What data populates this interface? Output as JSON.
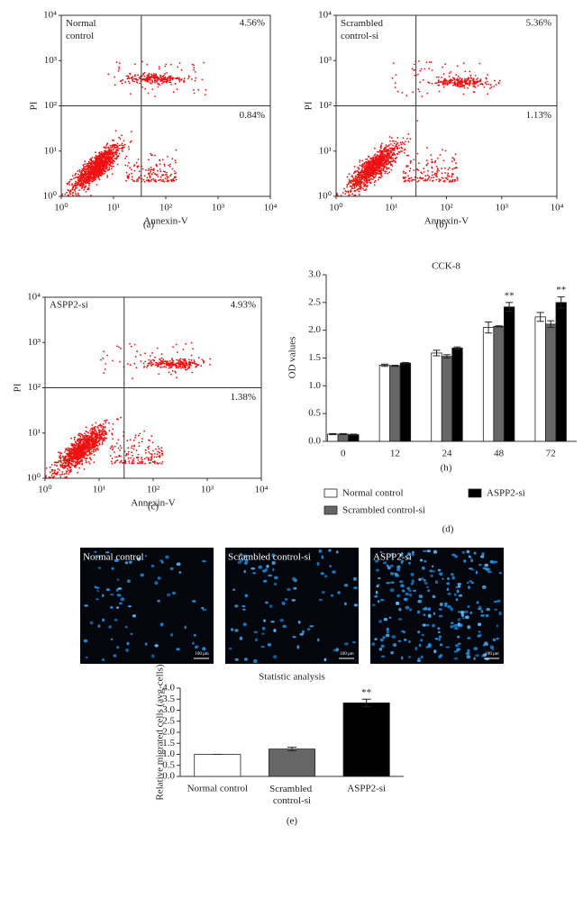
{
  "panel_labels": [
    "(a)",
    "(b)",
    "(c)",
    "(d)",
    "(e)"
  ],
  "chart_data": [
    {
      "type": "scatter",
      "title": "Normal control",
      "xlabel": "Annexin-V",
      "ylabel": "PI",
      "log_x": true,
      "log_y": true,
      "xlim": [
        1,
        10000
      ],
      "ylim": [
        1,
        10000
      ],
      "xticks": [
        {
          "value": 1,
          "label": "10⁰"
        },
        {
          "value": 10,
          "label": "10¹"
        },
        {
          "value": 100,
          "label": "10²"
        },
        {
          "value": 1000,
          "label": "10³"
        },
        {
          "value": 10000,
          "label": "10⁴"
        }
      ],
      "yticks": [
        {
          "value": 1,
          "label": "10⁰"
        },
        {
          "value": 10,
          "label": "10¹"
        },
        {
          "value": 100,
          "label": "10²"
        },
        {
          "value": 1000,
          "label": "10³"
        },
        {
          "value": 10000,
          "label": "10⁴"
        }
      ],
      "gate": {
        "x": 34,
        "y": 100
      },
      "quadrant_values": [
        4.56,
        0.84
      ],
      "quadrant_value_labels": [
        "4.56%",
        "0.84%"
      ],
      "color": "#ee1111"
    },
    {
      "type": "scatter",
      "title": "Scrambled control-si",
      "xlabel": "Annexin-V",
      "ylabel": "PI",
      "log_x": true,
      "log_y": true,
      "xlim": [
        1,
        10000
      ],
      "ylim": [
        1,
        10000
      ],
      "xticks": [
        {
          "value": 1,
          "label": "10⁰"
        },
        {
          "value": 10,
          "label": "10¹"
        },
        {
          "value": 100,
          "label": "10²"
        },
        {
          "value": 1000,
          "label": "10³"
        },
        {
          "value": 10000,
          "label": "10⁴"
        }
      ],
      "yticks": [
        {
          "value": 1,
          "label": "10⁰"
        },
        {
          "value": 10,
          "label": "10¹"
        },
        {
          "value": 100,
          "label": "10²"
        },
        {
          "value": 1000,
          "label": "10³"
        },
        {
          "value": 10000,
          "label": "10⁴"
        }
      ],
      "gate": {
        "x": 28,
        "y": 100
      },
      "quadrant_values": [
        5.36,
        1.13
      ],
      "quadrant_value_labels": [
        "5.36%",
        "1.13%"
      ],
      "color": "#ee1111"
    },
    {
      "type": "scatter",
      "title": "ASPP2-si",
      "xlabel": "Annexin-V",
      "ylabel": "PI",
      "log_x": true,
      "log_y": true,
      "xlim": [
        1,
        10000
      ],
      "ylim": [
        1,
        10000
      ],
      "xticks": [
        {
          "value": 1,
          "label": "10⁰"
        },
        {
          "value": 10,
          "label": "10¹"
        },
        {
          "value": 100,
          "label": "10²"
        },
        {
          "value": 1000,
          "label": "10³"
        },
        {
          "value": 10000,
          "label": "10⁴"
        }
      ],
      "yticks": [
        {
          "value": 1,
          "label": "10⁰"
        },
        {
          "value": 10,
          "label": "10¹"
        },
        {
          "value": 100,
          "label": "10²"
        },
        {
          "value": 1000,
          "label": "10³"
        },
        {
          "value": 10000,
          "label": "10⁴"
        }
      ],
      "gate": {
        "x": 29,
        "y": 100
      },
      "quadrant_values": [
        4.93,
        1.38
      ],
      "quadrant_value_labels": [
        "4.93%",
        "1.38%"
      ],
      "color": "#ee1111"
    },
    {
      "type": "bar",
      "title": "CCK-8",
      "xlabel": "(h)",
      "ylabel": "OD values",
      "categories": [
        "0",
        "12",
        "24",
        "48",
        "72"
      ],
      "ylim": [
        0,
        3
      ],
      "yticks": [
        {
          "value": 0,
          "label": "0.0"
        },
        0.5,
        {
          "value": 1,
          "label": "1.0"
        },
        1.5,
        {
          "value": 2,
          "label": "2.0"
        },
        2.5,
        {
          "value": 3,
          "label": "3.0"
        }
      ],
      "legend": "bottom",
      "series": [
        {
          "name": "Normal control",
          "color": "#ffffff",
          "values": [
            0.13,
            1.37,
            1.59,
            2.05,
            2.24
          ],
          "errors": [
            0.01,
            0.02,
            0.05,
            0.1,
            0.08
          ],
          "significance": [
            null,
            null,
            null,
            null,
            null
          ]
        },
        {
          "name": "Scrambled control-si",
          "color": "#666666",
          "values": [
            0.13,
            1.36,
            1.53,
            2.07,
            2.11
          ],
          "errors": [
            0.01,
            0.01,
            0.03,
            0.01,
            0.06
          ],
          "significance": [
            null,
            null,
            null,
            null,
            null
          ]
        },
        {
          "name": "ASPP2-si",
          "color": "#000000",
          "values": [
            0.12,
            1.41,
            1.68,
            2.42,
            2.5
          ],
          "errors": [
            0.01,
            0.01,
            0.02,
            0.08,
            0.1
          ],
          "significance": [
            null,
            null,
            null,
            "**",
            "**"
          ]
        }
      ]
    },
    {
      "type": "bar",
      "title": "Statistic analysis",
      "ylabel": "Relative migrated cells (avg-cells)",
      "categories": [
        "Normal control",
        "Scrambled control-si",
        "ASPP2-si"
      ],
      "values": [
        1.0,
        1.24,
        3.33
      ],
      "errors": [
        0,
        0.08,
        0.17
      ],
      "colors": [
        "#ffffff",
        "#666666",
        "#000000"
      ],
      "significance": [
        null,
        null,
        "**"
      ],
      "ylim": [
        0,
        4
      ],
      "yticks": [
        {
          "value": 0,
          "label": "0.0"
        },
        0.5,
        {
          "value": 1,
          "label": "1.0"
        },
        1.5,
        {
          "value": 2,
          "label": "2.0"
        },
        2.5,
        {
          "value": 3,
          "label": "3.0"
        },
        3.5,
        {
          "value": 4,
          "label": "4.0"
        }
      ]
    }
  ],
  "micrographs": {
    "labels": [
      "Normal control",
      "Scrambled control-si",
      "ASPP2-si"
    ],
    "scale_bar": "100 μm"
  }
}
